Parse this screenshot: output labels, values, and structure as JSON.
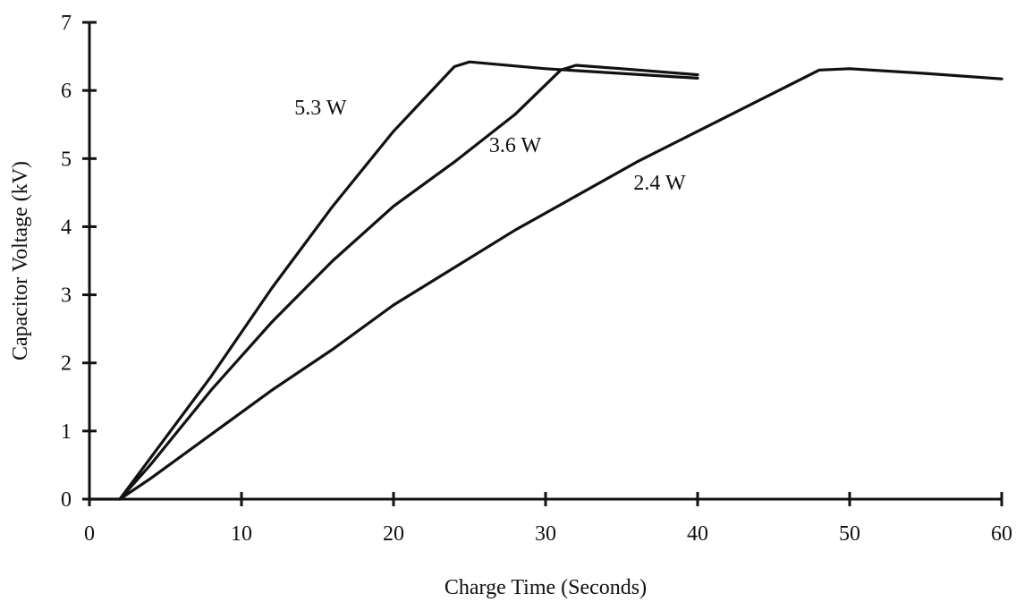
{
  "chart_data": {
    "type": "line",
    "title": "",
    "xlabel": "Charge Time (Seconds)",
    "ylabel": "Capacitor Voltage (kV)",
    "xlim": [
      0,
      60
    ],
    "ylim": [
      0,
      7
    ],
    "xticks": [
      0,
      10,
      20,
      30,
      40,
      50,
      60
    ],
    "yticks": [
      0,
      1,
      2,
      3,
      4,
      5,
      6,
      7
    ],
    "grid": false,
    "legend": "none",
    "line_color": "#111111",
    "series": [
      {
        "name": "5.3 W",
        "points": [
          [
            0,
            0
          ],
          [
            2,
            0
          ],
          [
            4,
            0.6
          ],
          [
            8,
            1.8
          ],
          [
            12,
            3.1
          ],
          [
            16,
            4.3
          ],
          [
            20,
            5.4
          ],
          [
            24,
            6.35
          ],
          [
            25,
            6.42
          ],
          [
            30,
            6.32
          ],
          [
            35,
            6.25
          ],
          [
            40,
            6.18
          ]
        ]
      },
      {
        "name": "3.6 W",
        "points": [
          [
            2,
            0
          ],
          [
            4,
            0.5
          ],
          [
            8,
            1.6
          ],
          [
            12,
            2.6
          ],
          [
            16,
            3.5
          ],
          [
            20,
            4.3
          ],
          [
            24,
            4.95
          ],
          [
            28,
            5.65
          ],
          [
            31,
            6.3
          ],
          [
            32,
            6.37
          ],
          [
            35,
            6.32
          ],
          [
            40,
            6.23
          ]
        ]
      },
      {
        "name": "2.4 W",
        "points": [
          [
            2,
            0
          ],
          [
            4,
            0.3
          ],
          [
            8,
            0.95
          ],
          [
            12,
            1.6
          ],
          [
            16,
            2.2
          ],
          [
            20,
            2.85
          ],
          [
            24,
            3.4
          ],
          [
            28,
            3.95
          ],
          [
            32,
            4.45
          ],
          [
            36,
            4.95
          ],
          [
            40,
            5.4
          ],
          [
            44,
            5.85
          ],
          [
            48,
            6.3
          ],
          [
            50,
            6.32
          ],
          [
            55,
            6.25
          ],
          [
            60,
            6.17
          ]
        ]
      }
    ],
    "annotations": [
      {
        "text": "5.3 W",
        "x": 15.2,
        "y": 5.75
      },
      {
        "text": "3.6 W",
        "x": 28.0,
        "y": 5.2
      },
      {
        "text": "2.4 W",
        "x": 37.5,
        "y": 4.65
      }
    ]
  }
}
